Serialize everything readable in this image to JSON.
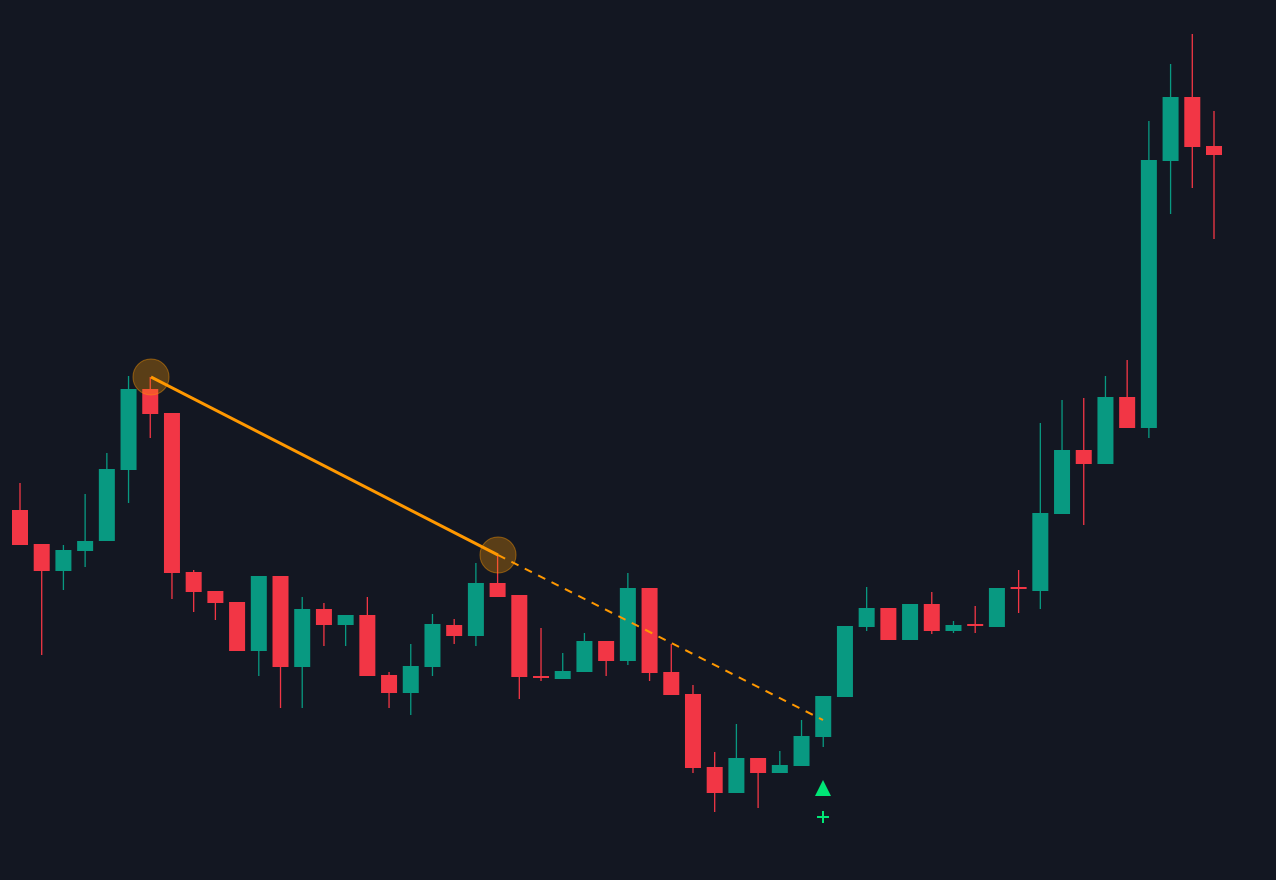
{
  "chart_data": {
    "type": "candlestick",
    "up_color": "#089981",
    "down_color": "#f23645",
    "ylim": [
      0,
      880
    ],
    "open": [
      370,
      336,
      309,
      329,
      339,
      410,
      491,
      467,
      308,
      289,
      278,
      229,
      304,
      213,
      271,
      255,
      265,
      205,
      187,
      213,
      255,
      244,
      297,
      285,
      204,
      201,
      208,
      239,
      219,
      292,
      208,
      186,
      113,
      87,
      122,
      107,
      114,
      143,
      183,
      253,
      272,
      240,
      276,
      249,
      256,
      253,
      293,
      289,
      366,
      430,
      416,
      483,
      452,
      719,
      783,
      734
    ],
    "high": [
      397,
      336,
      335,
      386,
      427,
      504,
      503,
      467,
      310,
      289,
      278,
      304,
      304,
      283,
      277,
      265,
      283,
      208,
      236,
      266,
      261,
      317,
      325,
      285,
      252,
      227,
      247,
      239,
      307,
      292,
      236,
      195,
      128,
      156,
      122,
      129,
      160,
      184,
      254,
      293,
      272,
      276,
      288,
      259,
      274,
      292,
      310,
      457,
      480,
      482,
      504,
      520,
      759,
      816,
      846,
      769
    ],
    "low": [
      335,
      225,
      290,
      313,
      339,
      377,
      442,
      281,
      268,
      260,
      229,
      204,
      172,
      172,
      234,
      234,
      204,
      172,
      165,
      204,
      236,
      234,
      283,
      181,
      199,
      201,
      208,
      204,
      215,
      199,
      185,
      107,
      68,
      87,
      72,
      107,
      114,
      133,
      183,
      249,
      240,
      240,
      246,
      247,
      247,
      253,
      267,
      271,
      366,
      355,
      416,
      452,
      442,
      666,
      692,
      641
    ],
    "close": [
      335,
      309,
      330,
      339,
      411,
      491,
      466,
      307,
      288,
      277,
      229,
      304,
      213,
      271,
      255,
      265,
      204,
      187,
      214,
      256,
      244,
      297,
      283,
      203,
      202,
      209,
      239,
      219,
      292,
      207,
      185,
      112,
      87,
      122,
      107,
      115,
      144,
      184,
      254,
      272,
      240,
      276,
      249,
      255,
      254,
      292,
      291,
      367,
      430,
      416,
      483,
      452,
      720,
      783,
      733,
      725
    ]
  }
}
